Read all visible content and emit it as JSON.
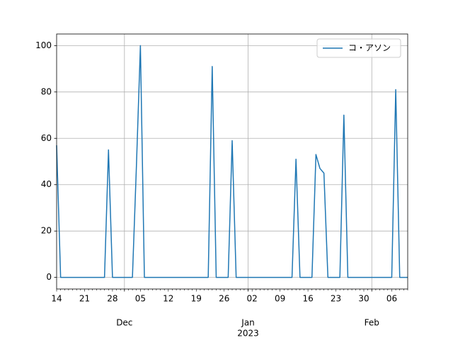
{
  "chart_data": {
    "type": "line",
    "categories": [
      "14",
      null,
      null,
      null,
      null,
      null,
      null,
      "21",
      null,
      null,
      null,
      null,
      null,
      null,
      "28",
      null,
      null,
      null,
      null,
      null,
      null,
      "05",
      null,
      null,
      null,
      null,
      null,
      null,
      "12",
      null,
      null,
      null,
      null,
      null,
      null,
      "19",
      null,
      null,
      null,
      null,
      null,
      null,
      "26",
      null,
      null,
      null,
      null,
      null,
      null,
      "02",
      null,
      null,
      null,
      null,
      null,
      null,
      "09",
      null,
      null,
      null,
      null,
      null,
      null,
      "16",
      null,
      null,
      null,
      null,
      null,
      null,
      "23",
      null,
      null,
      null,
      null,
      null,
      null,
      "30",
      null,
      null,
      null,
      null,
      null,
      null,
      "06",
      null,
      null,
      null,
      null
    ],
    "month_ticks": [
      {
        "value": 17,
        "label": "Dec"
      },
      {
        "value": 48,
        "label": "Jan"
      },
      {
        "value": 79,
        "label": "Feb"
      }
    ],
    "year_label": "2023",
    "series": [
      {
        "name": "コ・アソン",
        "color": "#1f77b4",
        "values": [
          57,
          0,
          0,
          0,
          0,
          0,
          0,
          0,
          0,
          0,
          0,
          0,
          0,
          55,
          0,
          0,
          0,
          0,
          0,
          0,
          48,
          100,
          0,
          0,
          0,
          0,
          0,
          0,
          0,
          0,
          0,
          0,
          0,
          0,
          0,
          0,
          0,
          0,
          0,
          91,
          0,
          0,
          0,
          0,
          59,
          0,
          0,
          0,
          0,
          0,
          0,
          0,
          0,
          0,
          0,
          0,
          0,
          0,
          0,
          0,
          51,
          0,
          0,
          0,
          0,
          53,
          47,
          45,
          0,
          0,
          0,
          0,
          70,
          0,
          0,
          0,
          0,
          0,
          0,
          0,
          0,
          0,
          0,
          0,
          0,
          81,
          0,
          0,
          0
        ]
      }
    ],
    "ylim": [
      -5,
      105
    ],
    "yticks": [
      0,
      20,
      40,
      60,
      80,
      100
    ],
    "grid": true,
    "legend": "upper right"
  }
}
